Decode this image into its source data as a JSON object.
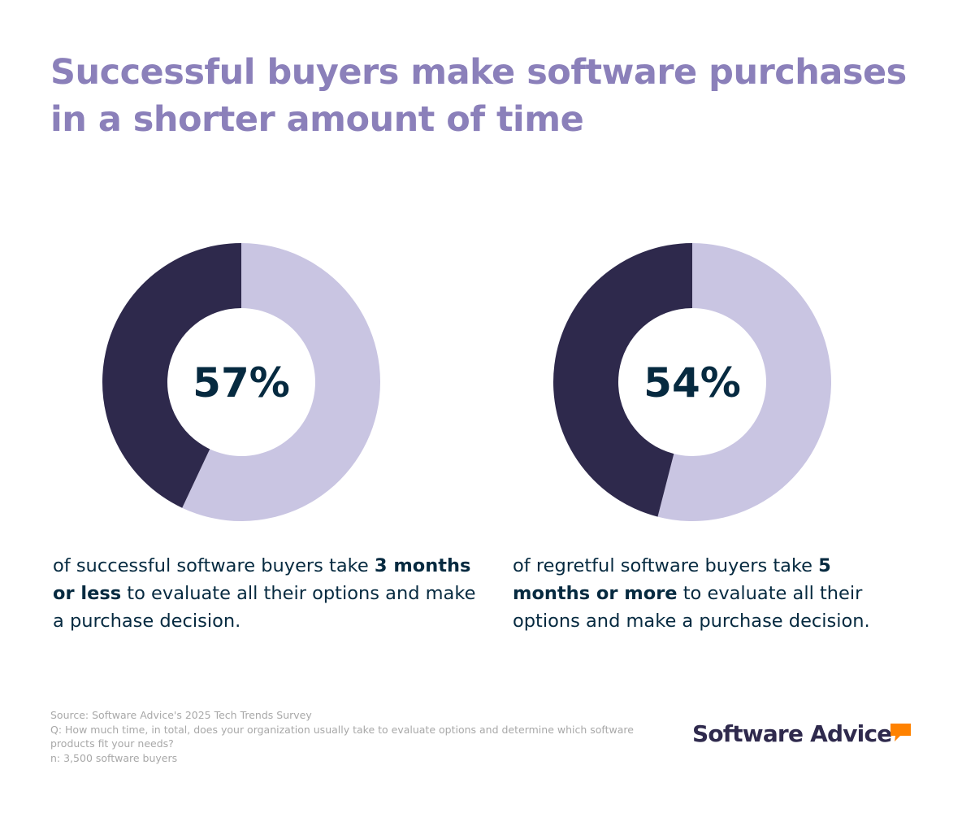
{
  "colors": {
    "title": "#8b80ba",
    "dark_segment": "#2e294c",
    "light_segment": "#c9c5e2",
    "percent_text": "#062a40",
    "body_text": "#062a40",
    "source_text": "#a8a8a8",
    "logo_text": "#2f2a4d",
    "logo_accent": "#ff8200"
  },
  "title": "Successful buyers make software purchases in a shorter amount of time",
  "chart_data": [
    {
      "type": "pie",
      "donut": true,
      "center_label": "57%",
      "slices": [
        {
          "value": 57,
          "color": "#c9c5e2"
        },
        {
          "value": 43,
          "color": "#2e294c"
        }
      ]
    },
    {
      "type": "pie",
      "donut": true,
      "center_label": "54%",
      "slices": [
        {
          "value": 54,
          "color": "#c9c5e2"
        },
        {
          "value": 46,
          "color": "#2e294c"
        }
      ]
    }
  ],
  "captions": [
    {
      "pre": "of successful software buyers take ",
      "bold": "3 months or less",
      "post": " to evaluate all their options and make a purchase decision."
    },
    {
      "pre": "of regretful software buyers take ",
      "bold": "5 months or more",
      "post": " to evaluate all their options and make a purchase decision."
    }
  ],
  "source": {
    "line1": "Source: Software Advice's 2025 Tech Trends Survey",
    "line2": "Q: How much time, in total, does your organization usually take to evaluate options and determine which software products fit your needs?",
    "line3": "n: 3,500 software buyers"
  },
  "logo": {
    "text": "Software Advice",
    "icon": "speech-bubble-icon"
  }
}
